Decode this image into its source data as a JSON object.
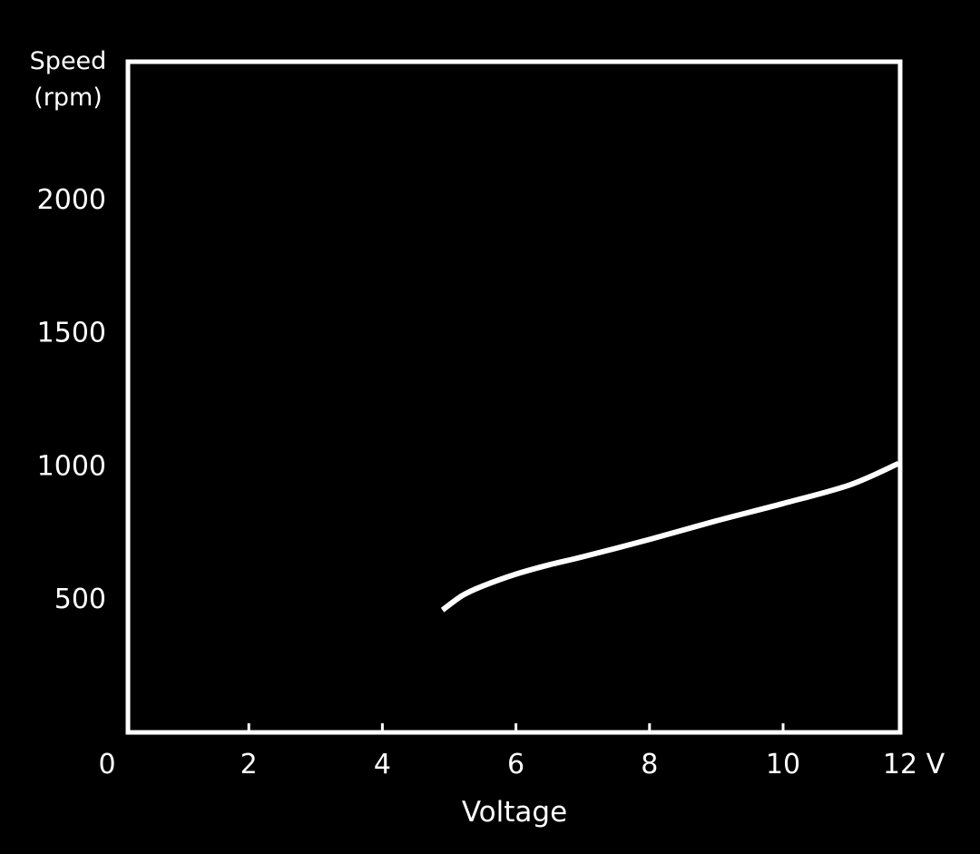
{
  "colors": {
    "background": "#000000",
    "foreground": "#ffffff",
    "gridline": "#5a5a5a"
  },
  "chart_data": {
    "type": "line",
    "title": "",
    "xlabel": "Voltage",
    "xunit": "V",
    "ylabel_line1": "Speed",
    "ylabel_line2": "(rpm)",
    "xlim": [
      0,
      12
    ],
    "ylim": [
      0,
      2500
    ],
    "x_ticks": [
      0,
      2,
      4,
      6,
      8,
      10,
      12
    ],
    "x_tick_labels": [
      "0",
      "2",
      "4",
      "6",
      "8",
      "10",
      "12 V"
    ],
    "y_ticks": [
      500,
      1000,
      1500,
      2000
    ],
    "y_tick_labels": [
      "500",
      "1000",
      "1500",
      "2000"
    ],
    "grid": "horizontal",
    "legend": "none",
    "series": [
      {
        "x": [
          4.9,
          5.2,
          5.5,
          6.0,
          6.5,
          7.0,
          8.0,
          9.0,
          10.0,
          11.0,
          12.0
        ],
        "y": [
          455,
          510,
          545,
          590,
          625,
          655,
          720,
          790,
          855,
          925,
          1005
        ]
      }
    ]
  }
}
